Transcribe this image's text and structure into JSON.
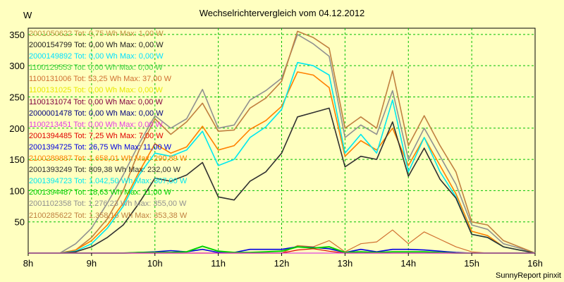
{
  "chart_data": {
    "type": "line",
    "title": "Wechselrichtervergleich vom 04.12.2012",
    "ylabel": "W",
    "footer": "SunnyReport pinxit",
    "ylim": [
      0,
      360
    ],
    "yticks": [
      50,
      100,
      150,
      200,
      250,
      300,
      350
    ],
    "xticks": [
      "8h",
      "9h",
      "10h",
      "11h",
      "12h",
      "13h",
      "14h",
      "15h",
      "16h"
    ],
    "xlim_hours": [
      8,
      16
    ],
    "grid": true,
    "legend_position": "top-left",
    "legend": [
      {
        "text": "2001050622 Tot: 0,75 Wh Max: 1,00 W",
        "color": "#c09040"
      },
      {
        "text": "2000154799 Tot: 0,00 Wh Max: 0,00 W",
        "color": "#202020"
      },
      {
        "text": "2000149892 Tot: 0,00 Wh Max: 0,00 W",
        "color": "#00e0ff"
      },
      {
        "text": "1100129553 Tot: 0,00 Wh Max: 0,00 W",
        "color": "#40d040"
      },
      {
        "text": "1100131006 Tot: 53,25 Wh Max: 37,00 W",
        "color": "#d07030"
      },
      {
        "text": "1100131025 Tot: 0,00 Wh Max: 0,00 W",
        "color": "#e8e800"
      },
      {
        "text": "1100131074 Tot: 0,00 Wh Max: 0,00 W",
        "color": "#800040"
      },
      {
        "text": "2000001478 Tot: 0,00 Wh Max: 0,00 W",
        "color": "#000080"
      },
      {
        "text": "1100213451 Tot: 0,00 Wh Max: 0,00 W",
        "color": "#e040e0"
      },
      {
        "text": "2001394485 Tot: 7,25 Wh Max: 7,00 W",
        "color": "#e00000"
      },
      {
        "text": "2001394725 Tot: 26,75 Wh Max: 11,00 W",
        "color": "#0000e0"
      },
      {
        "text": "2100289887 Tot: 1.658,01 Wh Max: 290,89 W",
        "color": "#ff8000"
      },
      {
        "text": "2001393249 Tot: 809,38 Wh Max: 232,00 W",
        "color": "#303030"
      },
      {
        "text": "2001394723 Tot: 1.042,50 Wh Max: 307,00 W",
        "color": "#00e8f0"
      },
      {
        "text": "2001394487 Tot: 18,63 Wh Max: 11,00 W",
        "color": "#00d000"
      },
      {
        "text": "2001102358 Tot: 1.276,23 Wh Max: 355,00 W",
        "color": "#909090"
      },
      {
        "text": "2100285622 Tot: 1.358,16 Wh Max: 353,38 W",
        "color": "#c08040"
      }
    ],
    "x": [
      8.0,
      8.25,
      8.5,
      8.75,
      9.0,
      9.25,
      9.5,
      9.75,
      10.0,
      10.25,
      10.5,
      10.75,
      11.0,
      11.25,
      11.5,
      11.75,
      12.0,
      12.25,
      12.5,
      12.75,
      13.0,
      13.25,
      13.5,
      13.75,
      14.0,
      14.25,
      14.5,
      14.75,
      15.0,
      15.25,
      15.5,
      15.75,
      16.0
    ],
    "series": [
      {
        "name": "2001102358",
        "color": "#909090",
        "width": 1.6,
        "values": [
          0,
          0,
          0,
          15,
          40,
          80,
          125,
          175,
          220,
          200,
          215,
          262,
          200,
          205,
          245,
          260,
          280,
          350,
          335,
          315,
          185,
          205,
          190,
          260,
          150,
          200,
          155,
          110,
          45,
          38,
          15,
          8,
          0
        ]
      },
      {
        "name": "2100285622",
        "color": "#c08040",
        "width": 1.6,
        "values": [
          0,
          0,
          0,
          5,
          25,
          55,
          100,
          165,
          215,
          190,
          210,
          240,
          195,
          197,
          232,
          248,
          275,
          355,
          345,
          328,
          200,
          218,
          200,
          292,
          172,
          220,
          172,
          130,
          50,
          45,
          20,
          10,
          0
        ]
      },
      {
        "name": "2100289887",
        "color": "#ff8000",
        "width": 1.6,
        "values": [
          0,
          0,
          0,
          5,
          20,
          45,
          80,
          130,
          175,
          160,
          170,
          203,
          165,
          172,
          198,
          212,
          235,
          290,
          285,
          265,
          155,
          180,
          165,
          200,
          140,
          185,
          140,
          95,
          35,
          28,
          10,
          5,
          0
        ]
      },
      {
        "name": "2001394723",
        "color": "#00e8f0",
        "width": 1.6,
        "values": [
          0,
          0,
          0,
          3,
          15,
          40,
          75,
          125,
          160,
          155,
          165,
          195,
          140,
          150,
          185,
          202,
          230,
          305,
          300,
          285,
          160,
          190,
          160,
          245,
          130,
          185,
          130,
          90,
          30,
          25,
          10,
          5,
          0
        ]
      },
      {
        "name": "2001393249",
        "color": "#303030",
        "width": 1.6,
        "values": [
          0,
          0,
          0,
          2,
          10,
          25,
          45,
          80,
          120,
          115,
          125,
          145,
          90,
          85,
          115,
          130,
          160,
          218,
          225,
          232,
          138,
          155,
          150,
          210,
          123,
          168,
          118,
          88,
          30,
          25,
          10,
          5,
          0
        ]
      },
      {
        "name": "1100131006",
        "color": "#d07030",
        "width": 1.2,
        "values": [
          0,
          0,
          0,
          0,
          0,
          0,
          0,
          0,
          0,
          0,
          0,
          0,
          0,
          0,
          0,
          0,
          0,
          12,
          10,
          20,
          2,
          15,
          18,
          37,
          15,
          34,
          22,
          10,
          2,
          0,
          0,
          0,
          0
        ]
      },
      {
        "name": "2001394725",
        "color": "#0000e0",
        "width": 1.6,
        "values": [
          0,
          0,
          0,
          0,
          0,
          0,
          0,
          1,
          2,
          4,
          2,
          6,
          1,
          1,
          6,
          6,
          6,
          10,
          9,
          7,
          1,
          6,
          2,
          6,
          6,
          5,
          3,
          1,
          0,
          0,
          0,
          0,
          0
        ]
      },
      {
        "name": "2001394487",
        "color": "#00d000",
        "width": 2,
        "values": [
          0,
          0,
          0,
          0,
          0,
          0,
          0,
          1,
          1,
          1,
          2,
          11,
          3,
          1,
          1,
          2,
          3,
          10,
          8,
          10,
          1,
          2,
          1,
          2,
          2,
          2,
          1,
          0,
          0,
          0,
          0,
          0,
          0
        ]
      },
      {
        "name": "2001394485",
        "color": "#e00000",
        "width": 1.2,
        "values": [
          0,
          0,
          0,
          0,
          0,
          0,
          0,
          0,
          0,
          0,
          0,
          0,
          0,
          0,
          0,
          0,
          0,
          5,
          7,
          3,
          0,
          0,
          0,
          0,
          0,
          0,
          0,
          0,
          0,
          0,
          0,
          0,
          0
        ]
      },
      {
        "name": "1100213451",
        "color": "#e040e0",
        "width": 1.2,
        "values": [
          0,
          0,
          0,
          0,
          0,
          0,
          0,
          0,
          0,
          0,
          0,
          0,
          0,
          0,
          0,
          0,
          0,
          0,
          0,
          0,
          0,
          0,
          0,
          0,
          0,
          0,
          0,
          0,
          0,
          0,
          0,
          0,
          0
        ]
      }
    ]
  }
}
